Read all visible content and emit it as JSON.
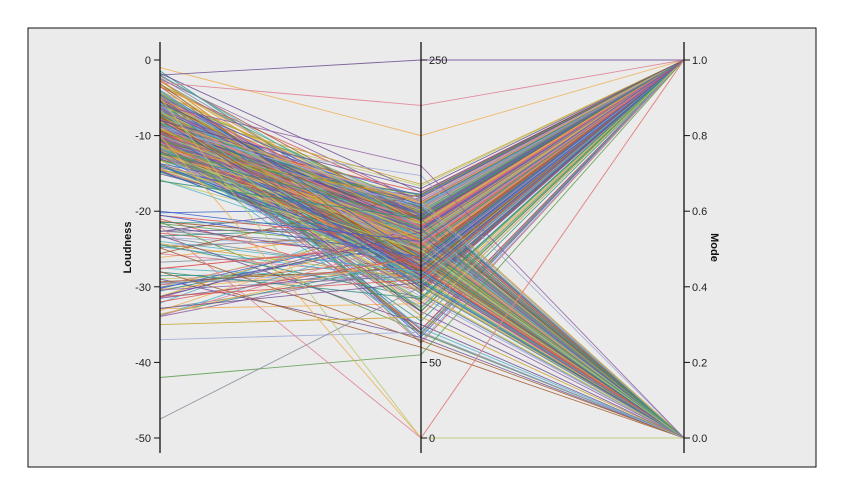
{
  "chart_data": {
    "type": "parallel_coordinates",
    "title": "",
    "grid": false,
    "legend": "none",
    "colors": {
      "plot_background": "#ebebeb",
      "frame": "#111111",
      "palette": [
        "#3a5fcd",
        "#d9534f",
        "#5a9e4b",
        "#f0ad4e",
        "#8e5ea2",
        "#4bb3c8",
        "#c9a227",
        "#7d8b99",
        "#e07b91",
        "#2f8f83",
        "#a05a2c",
        "#9aa7d6",
        "#b8c96a",
        "#6a4c93"
      ]
    },
    "axes": [
      {
        "label": "Loudness",
        "label_position": "left",
        "min": -50,
        "max": 1,
        "ticks": [
          0,
          -10,
          -20,
          -30,
          -40,
          -50
        ],
        "tick_labels": [
          "0",
          "-10",
          "-20",
          "-30",
          "-40",
          "-50"
        ]
      },
      {
        "label": "",
        "min": 0,
        "max": 250,
        "ticks": [
          250,
          50,
          0
        ],
        "tick_labels": [
          "250",
          "50",
          "0"
        ]
      },
      {
        "label": "Mode",
        "label_position": "right",
        "min": 0,
        "max": 1,
        "ticks": [
          1.0,
          0.8,
          0.6,
          0.4,
          0.2,
          0.0
        ],
        "tick_labels": [
          "1.0",
          "0.8",
          "0.6",
          "0.4",
          "0.2",
          "0.0"
        ]
      }
    ],
    "highlighted_records": [
      [
        -1,
        200,
        1
      ],
      [
        -3,
        220,
        1
      ],
      [
        -8,
        165,
        1
      ],
      [
        -12,
        90,
        0
      ],
      [
        -16,
        145,
        1
      ],
      [
        -20,
        130,
        1
      ],
      [
        -24,
        110,
        0
      ],
      [
        -28,
        60,
        0
      ],
      [
        -32,
        120,
        1
      ],
      [
        -35,
        80,
        0
      ],
      [
        -37,
        70,
        0
      ],
      [
        -42,
        55,
        1
      ],
      [
        -47.5,
        100,
        0
      ],
      [
        -5,
        0,
        0
      ],
      [
        -10,
        0,
        1
      ],
      [
        -22,
        0,
        1
      ],
      [
        -2,
        250,
        1
      ],
      [
        -6,
        180,
        0
      ]
    ]
  }
}
